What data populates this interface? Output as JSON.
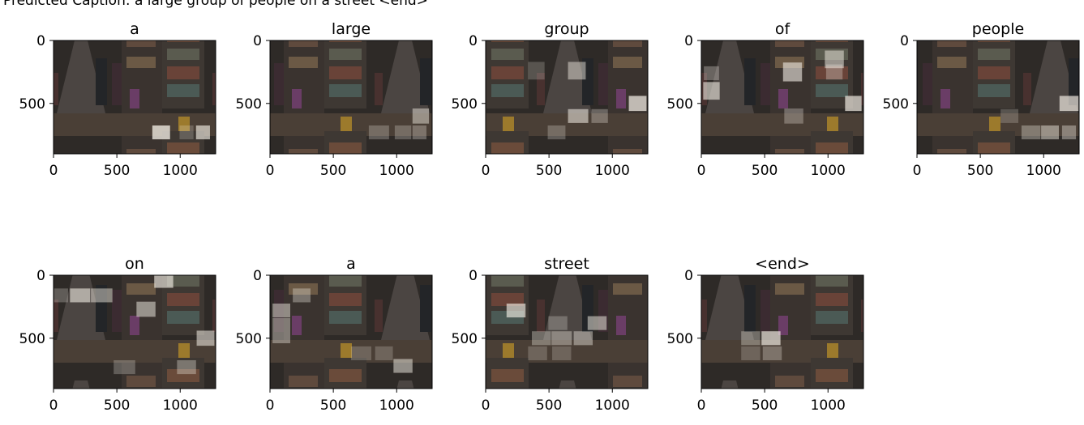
{
  "caption": "Predicted Caption: a large group of people on a street <end>",
  "chart_data": [
    {
      "type": "heatmap",
      "title": "a",
      "x_ticks": [
        "0",
        "500",
        "1000"
      ],
      "y_ticks": [
        "0",
        "500"
      ],
      "xlim": [
        0,
        1280
      ],
      "ylim": [
        900,
        0
      ],
      "attention_patches": [
        {
          "x": 850,
          "y": 730,
          "w": 140,
          "h": 110,
          "weight": 0.9
        },
        {
          "x": 1180,
          "y": 730,
          "w": 110,
          "h": 110,
          "weight": 0.75
        },
        {
          "x": 1050,
          "y": 730,
          "w": 110,
          "h": 110,
          "weight": 0.25
        }
      ]
    },
    {
      "type": "heatmap",
      "title": "large",
      "x_ticks": [
        "0",
        "500",
        "1000"
      ],
      "y_ticks": [
        "0",
        "500"
      ],
      "xlim": [
        0,
        1280
      ],
      "ylim": [
        900,
        0
      ],
      "attention_patches": [
        {
          "x": 1190,
          "y": 600,
          "w": 130,
          "h": 120,
          "weight": 0.55
        },
        {
          "x": 860,
          "y": 730,
          "w": 160,
          "h": 110,
          "weight": 0.3
        },
        {
          "x": 1050,
          "y": 730,
          "w": 130,
          "h": 110,
          "weight": 0.3
        },
        {
          "x": 1180,
          "y": 730,
          "w": 110,
          "h": 110,
          "weight": 0.35
        }
      ]
    },
    {
      "type": "heatmap",
      "title": "group",
      "x_ticks": [
        "0",
        "500",
        "1000"
      ],
      "y_ticks": [
        "0",
        "500"
      ],
      "xlim": [
        0,
        1280
      ],
      "ylim": [
        900,
        0
      ],
      "attention_patches": [
        {
          "x": 720,
          "y": 240,
          "w": 140,
          "h": 140,
          "weight": 0.55
        },
        {
          "x": 1200,
          "y": 500,
          "w": 140,
          "h": 120,
          "weight": 0.85
        },
        {
          "x": 730,
          "y": 600,
          "w": 160,
          "h": 110,
          "weight": 0.65
        },
        {
          "x": 900,
          "y": 600,
          "w": 130,
          "h": 110,
          "weight": 0.35
        },
        {
          "x": 560,
          "y": 730,
          "w": 140,
          "h": 110,
          "weight": 0.3
        },
        {
          "x": 400,
          "y": 240,
          "w": 130,
          "h": 140,
          "weight": 0.25
        }
      ]
    },
    {
      "type": "heatmap",
      "title": "of",
      "x_ticks": [
        "0",
        "500",
        "1000"
      ],
      "y_ticks": [
        "0",
        "500"
      ],
      "xlim": [
        0,
        1280
      ],
      "ylim": [
        900,
        0
      ],
      "attention_patches": [
        {
          "x": 80,
          "y": 400,
          "w": 130,
          "h": 140,
          "weight": 0.7
        },
        {
          "x": 720,
          "y": 250,
          "w": 150,
          "h": 150,
          "weight": 0.7
        },
        {
          "x": 1050,
          "y": 150,
          "w": 150,
          "h": 140,
          "weight": 0.6
        },
        {
          "x": 1200,
          "y": 500,
          "w": 130,
          "h": 120,
          "weight": 0.8
        },
        {
          "x": 1050,
          "y": 250,
          "w": 130,
          "h": 120,
          "weight": 0.35
        },
        {
          "x": 730,
          "y": 600,
          "w": 150,
          "h": 120,
          "weight": 0.35
        },
        {
          "x": 80,
          "y": 260,
          "w": 120,
          "h": 110,
          "weight": 0.35
        }
      ]
    },
    {
      "type": "heatmap",
      "title": "people",
      "x_ticks": [
        "0",
        "500",
        "1000"
      ],
      "y_ticks": [
        "0",
        "500"
      ],
      "xlim": [
        0,
        1280
      ],
      "ylim": [
        900,
        0
      ],
      "attention_patches": [
        {
          "x": 1200,
          "y": 500,
          "w": 150,
          "h": 120,
          "weight": 0.8
        },
        {
          "x": 1050,
          "y": 730,
          "w": 140,
          "h": 110,
          "weight": 0.55
        },
        {
          "x": 900,
          "y": 730,
          "w": 150,
          "h": 110,
          "weight": 0.4
        },
        {
          "x": 1200,
          "y": 730,
          "w": 110,
          "h": 110,
          "weight": 0.45
        },
        {
          "x": 730,
          "y": 600,
          "w": 140,
          "h": 110,
          "weight": 0.25
        }
      ]
    },
    {
      "type": "heatmap",
      "title": "on",
      "x_ticks": [
        "0",
        "500",
        "1000"
      ],
      "y_ticks": [
        "0",
        "500"
      ],
      "xlim": [
        0,
        1280
      ],
      "ylim": [
        900,
        0
      ],
      "attention_patches": [
        {
          "x": 210,
          "y": 160,
          "w": 160,
          "h": 110,
          "weight": 0.7
        },
        {
          "x": 380,
          "y": 160,
          "w": 170,
          "h": 110,
          "weight": 0.55
        },
        {
          "x": 870,
          "y": 50,
          "w": 150,
          "h": 100,
          "weight": 0.75
        },
        {
          "x": 730,
          "y": 270,
          "w": 150,
          "h": 120,
          "weight": 0.6
        },
        {
          "x": 1200,
          "y": 500,
          "w": 140,
          "h": 120,
          "weight": 0.65
        },
        {
          "x": 1050,
          "y": 730,
          "w": 150,
          "h": 110,
          "weight": 0.4
        },
        {
          "x": 560,
          "y": 730,
          "w": 170,
          "h": 110,
          "weight": 0.3
        },
        {
          "x": 60,
          "y": 160,
          "w": 110,
          "h": 110,
          "weight": 0.3
        }
      ]
    },
    {
      "type": "heatmap",
      "title": "a",
      "x_ticks": [
        "0",
        "500",
        "1000"
      ],
      "y_ticks": [
        "0",
        "500"
      ],
      "xlim": [
        0,
        1280
      ],
      "ylim": [
        900,
        0
      ],
      "attention_patches": [
        {
          "x": 90,
          "y": 280,
          "w": 140,
          "h": 110,
          "weight": 0.55
        },
        {
          "x": 90,
          "y": 440,
          "w": 140,
          "h": 200,
          "weight": 0.45
        },
        {
          "x": 250,
          "y": 160,
          "w": 140,
          "h": 110,
          "weight": 0.4
        },
        {
          "x": 1050,
          "y": 720,
          "w": 150,
          "h": 110,
          "weight": 0.6
        },
        {
          "x": 720,
          "y": 620,
          "w": 160,
          "h": 110,
          "weight": 0.25
        },
        {
          "x": 900,
          "y": 620,
          "w": 140,
          "h": 110,
          "weight": 0.25
        }
      ]
    },
    {
      "type": "heatmap",
      "title": "street",
      "x_ticks": [
        "0",
        "500",
        "1000"
      ],
      "y_ticks": [
        "0",
        "500"
      ],
      "xlim": [
        0,
        1280
      ],
      "ylim": [
        900,
        0
      ],
      "attention_patches": [
        {
          "x": 240,
          "y": 280,
          "w": 150,
          "h": 110,
          "weight": 0.75
        },
        {
          "x": 880,
          "y": 380,
          "w": 150,
          "h": 110,
          "weight": 0.6
        },
        {
          "x": 570,
          "y": 380,
          "w": 150,
          "h": 110,
          "weight": 0.3
        },
        {
          "x": 440,
          "y": 500,
          "w": 150,
          "h": 110,
          "weight": 0.4
        },
        {
          "x": 600,
          "y": 500,
          "w": 160,
          "h": 110,
          "weight": 0.45
        },
        {
          "x": 770,
          "y": 500,
          "w": 150,
          "h": 110,
          "weight": 0.5
        },
        {
          "x": 410,
          "y": 620,
          "w": 150,
          "h": 110,
          "weight": 0.25
        },
        {
          "x": 600,
          "y": 620,
          "w": 150,
          "h": 110,
          "weight": 0.25
        }
      ]
    },
    {
      "type": "heatmap",
      "title": "<end>",
      "x_ticks": [
        "0",
        "500",
        "1000"
      ],
      "y_ticks": [
        "0",
        "500"
      ],
      "xlim": [
        0,
        1280
      ],
      "ylim": [
        900,
        0
      ],
      "attention_patches": [
        {
          "x": 550,
          "y": 500,
          "w": 150,
          "h": 110,
          "weight": 0.8
        },
        {
          "x": 390,
          "y": 500,
          "w": 150,
          "h": 110,
          "weight": 0.4
        },
        {
          "x": 560,
          "y": 620,
          "w": 150,
          "h": 110,
          "weight": 0.35
        },
        {
          "x": 390,
          "y": 620,
          "w": 150,
          "h": 110,
          "weight": 0.25
        }
      ]
    }
  ]
}
